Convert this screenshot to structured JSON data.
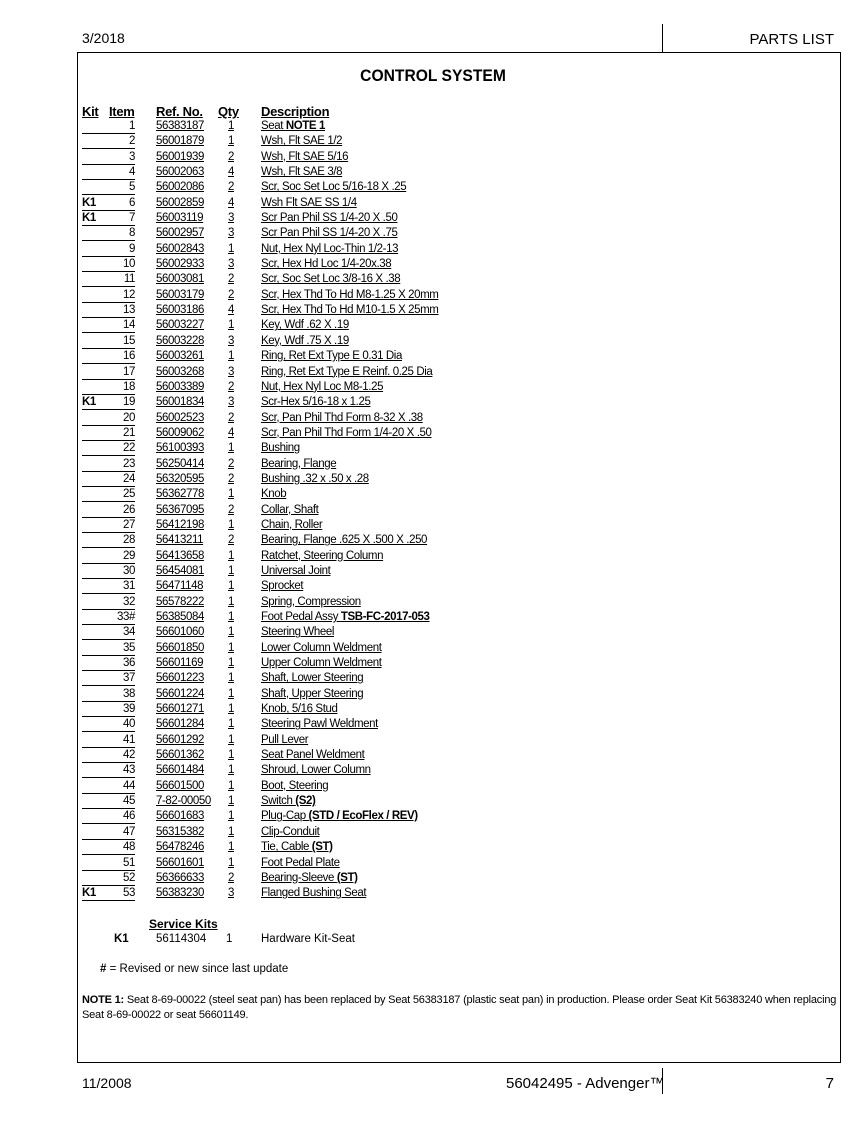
{
  "header": {
    "date": "3/2018",
    "section": "PARTS LIST"
  },
  "title": "CONTROL SYSTEM",
  "columns": {
    "kit": "Kit",
    "item": "Item",
    "ref": "Ref. No.",
    "qty": "Qty",
    "desc": "Description"
  },
  "rows": [
    {
      "kit": "",
      "item": "1",
      "ref": "56383187",
      "qty": "1",
      "desc": "Seat ",
      "bold": "NOTE 1"
    },
    {
      "kit": "",
      "item": "2",
      "ref": "56001879",
      "qty": "1",
      "desc": "Wsh, Flt SAE 1/2"
    },
    {
      "kit": "",
      "item": "3",
      "ref": "56001939",
      "qty": "2",
      "desc": "Wsh, Flt SAE 5/16"
    },
    {
      "kit": "",
      "item": "4",
      "ref": "56002063",
      "qty": "4",
      "desc": "Wsh, Flt SAE 3/8"
    },
    {
      "kit": "",
      "item": "5",
      "ref": "56002086",
      "qty": "2",
      "desc": "Scr, Soc Set Loc 5/16-18 X .25"
    },
    {
      "kit": "K1",
      "item": "6",
      "ref": "56002859",
      "qty": "4",
      "desc": "Wsh Flt SAE SS 1/4"
    },
    {
      "kit": "K1",
      "item": "7",
      "ref": "56003119",
      "qty": "3",
      "desc": "Scr  Pan Phil SS 1/4-20 X .50"
    },
    {
      "kit": "",
      "item": "8",
      "ref": "56002957",
      "qty": "3",
      "desc": "Scr Pan Phil SS 1/4-20 X  .75"
    },
    {
      "kit": "",
      "item": "9",
      "ref": "56002843",
      "qty": "1",
      "desc": "Nut, Hex Nyl Loc-Thin 1/2-13"
    },
    {
      "kit": "",
      "item": "10",
      "ref": "56002933",
      "qty": "3",
      "desc": "Scr, Hex Hd Loc 1/4-20x.38"
    },
    {
      "kit": "",
      "item": "11",
      "ref": "56003081",
      "qty": "2",
      "desc": "Scr, Soc Set Loc 3/8-16 X .38"
    },
    {
      "kit": "",
      "item": "12",
      "ref": "56003179",
      "qty": "2",
      "desc": "Scr, Hex Thd To Hd M8-1.25 X 20mm"
    },
    {
      "kit": "",
      "item": "13",
      "ref": "56003186",
      "qty": "4",
      "desc": "Scr, Hex Thd To Hd M10-1.5 X 25mm"
    },
    {
      "kit": "",
      "item": "14",
      "ref": "56003227",
      "qty": "1",
      "desc": "Key, Wdf .62 X .19"
    },
    {
      "kit": "",
      "item": "15",
      "ref": "56003228",
      "qty": "3",
      "desc": "Key, Wdf .75 X .19"
    },
    {
      "kit": "",
      "item": "16",
      "ref": "56003261",
      "qty": "1",
      "desc": "Ring, Ret Ext Type E 0.31 Dia"
    },
    {
      "kit": "",
      "item": "17",
      "ref": "56003268",
      "qty": "3",
      "desc": "Ring, Ret Ext Type E Reinf. 0.25 Dia"
    },
    {
      "kit": "",
      "item": "18",
      "ref": "56003389",
      "qty": "2",
      "desc": "Nut, Hex Nyl Loc M8-1.25"
    },
    {
      "kit": "K1",
      "item": "19",
      "ref": "56001834",
      "qty": "3",
      "desc": "Scr-Hex 5/16-18 x 1.25"
    },
    {
      "kit": "",
      "item": "20",
      "ref": "56002523",
      "qty": "2",
      "desc": "Scr, Pan Phil Thd Form 8-32 X .38"
    },
    {
      "kit": "",
      "item": "21",
      "ref": "56009062",
      "qty": "4",
      "desc": "Scr, Pan Phil Thd Form 1/4-20 X .50"
    },
    {
      "kit": "",
      "item": "22",
      "ref": "56100393",
      "qty": "1",
      "desc": "Bushing"
    },
    {
      "kit": "",
      "item": "23",
      "ref": "56250414",
      "qty": "2",
      "desc": "Bearing, Flange"
    },
    {
      "kit": "",
      "item": "24",
      "ref": "56320595",
      "qty": "2",
      "desc": "Bushing .32 x .50 x .28"
    },
    {
      "kit": "",
      "item": "25",
      "ref": "56362778",
      "qty": "1",
      "desc": "Knob"
    },
    {
      "kit": "",
      "item": "26",
      "ref": "56367095",
      "qty": "2",
      "desc": "Collar, Shaft"
    },
    {
      "kit": "",
      "item": "27",
      "ref": "56412198",
      "qty": "1",
      "desc": "Chain, Roller"
    },
    {
      "kit": "",
      "item": "28",
      "ref": "56413211",
      "qty": "2",
      "desc": "Bearing, Flange .625 X .500 X .250"
    },
    {
      "kit": "",
      "item": "29",
      "ref": "56413658",
      "qty": "1",
      "desc": "Ratchet, Steering Column"
    },
    {
      "kit": "",
      "item": "30",
      "ref": "56454081",
      "qty": "1",
      "desc": "Universal Joint"
    },
    {
      "kit": "",
      "item": "31",
      "ref": "56471148",
      "qty": "1",
      "desc": "Sprocket"
    },
    {
      "kit": "",
      "item": "32",
      "ref": "56578222",
      "qty": "1",
      "desc": "Spring, Compression"
    },
    {
      "kit": "",
      "item": "33#",
      "ref": "56385084",
      "qty": "1",
      "desc": "Foot Pedal Assy ",
      "bold": "TSB-FC-2017-053"
    },
    {
      "kit": "",
      "item": "34",
      "ref": "56601060",
      "qty": "1",
      "desc": "Steering Wheel"
    },
    {
      "kit": "",
      "item": "35",
      "ref": "56601850",
      "qty": "1",
      "desc": "Lower Column Weldment"
    },
    {
      "kit": "",
      "item": "36",
      "ref": "56601169",
      "qty": "1",
      "desc": "Upper Column Weldment"
    },
    {
      "kit": "",
      "item": "37",
      "ref": "56601223",
      "qty": "1",
      "desc": "Shaft, Lower Steering"
    },
    {
      "kit": "",
      "item": "38",
      "ref": "56601224",
      "qty": "1",
      "desc": "Shaft, Upper Steering"
    },
    {
      "kit": "",
      "item": "39",
      "ref": "56601271",
      "qty": "1",
      "desc": "Knob, 5/16 Stud"
    },
    {
      "kit": "",
      "item": "40",
      "ref": "56601284",
      "qty": "1",
      "desc": "Steering Pawl Weldment"
    },
    {
      "kit": "",
      "item": "41",
      "ref": "56601292",
      "qty": "1",
      "desc": "Pull Lever"
    },
    {
      "kit": "",
      "item": "42",
      "ref": "56601362",
      "qty": "1",
      "desc": "Seat Panel Weldment"
    },
    {
      "kit": "",
      "item": "43",
      "ref": "56601484",
      "qty": "1",
      "desc": "Shroud, Lower Column"
    },
    {
      "kit": "",
      "item": "44",
      "ref": "56601500",
      "qty": "1",
      "desc": "Boot, Steering"
    },
    {
      "kit": "",
      "item": "45",
      "ref": "7-82-00050",
      "qty": "1",
      "desc": "Switch ",
      "bold": "(S2)"
    },
    {
      "kit": "",
      "item": "46",
      "ref": "56601683",
      "qty": "1",
      "desc": "Plug-Cap ",
      "bold": "(STD / EcoFlex / REV)"
    },
    {
      "kit": "",
      "item": "47",
      "ref": "56315382",
      "qty": "1",
      "desc": "Clip-Conduit"
    },
    {
      "kit": "",
      "item": "48",
      "ref": "56478246",
      "qty": "1",
      "desc": "Tie, Cable ",
      "bold": "(ST)"
    },
    {
      "kit": "",
      "item": "51",
      "ref": "56601601",
      "qty": "1",
      "desc": "Foot Pedal Plate"
    },
    {
      "kit": "",
      "item": "52",
      "ref": "56366633",
      "qty": "2",
      "desc": "Bearing-Sleeve ",
      "bold": "(ST)"
    },
    {
      "kit": "K1",
      "item": "53",
      "ref": "56383230",
      "qty": "3",
      "desc": "Flanged Bushing Seat"
    }
  ],
  "service_kits": {
    "heading": "Service Kits",
    "kit": "K1",
    "ref": "56114304",
    "qty": "1",
    "desc": "Hardware Kit-Seat"
  },
  "legend": {
    "symbol": "#",
    "text": " = Revised or new since last update"
  },
  "note": {
    "label": "NOTE 1:",
    "text": " Seat 8-69-00022 (steel seat pan) has been replaced by Seat 56383187 (plastic seat pan) in production.  Please order Seat Kit 56383240 when replacing Seat 8-69-00022 or seat 56601149."
  },
  "footer": {
    "date": "11/2008",
    "doc": "56042495 - Advenger™",
    "page": "7"
  }
}
